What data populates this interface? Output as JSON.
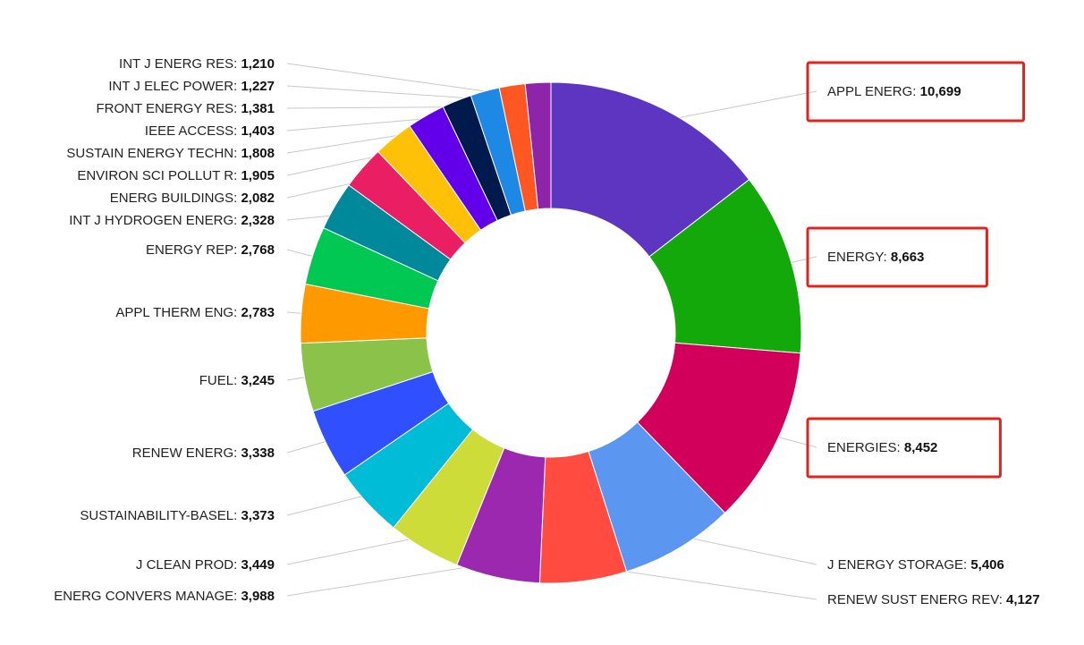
{
  "chart_data": {
    "type": "pie",
    "donut": true,
    "title": "",
    "slices": [
      {
        "label": "APPL ENERG",
        "value": 10699,
        "value_text": "10,699",
        "color": "#5e35c0",
        "highlighted": true
      },
      {
        "label": "ENERGY",
        "value": 8663,
        "value_text": "8,663",
        "color": "#13a90a",
        "highlighted": true
      },
      {
        "label": "ENERGIES",
        "value": 8452,
        "value_text": "8,452",
        "color": "#d2005a",
        "highlighted": true
      },
      {
        "label": "J ENERGY STORAGE",
        "value": 5406,
        "value_text": "5,406",
        "color": "#5b96f0",
        "highlighted": false
      },
      {
        "label": "RENEW SUST ENERG REV",
        "value": 4127,
        "value_text": "4,127",
        "color": "#ff4b40",
        "highlighted": false
      },
      {
        "label": "ENERG CONVERS MANAGE",
        "value": 3988,
        "value_text": "3,988",
        "color": "#9c28b0",
        "highlighted": false
      },
      {
        "label": "J CLEAN PROD",
        "value": 3449,
        "value_text": "3,449",
        "color": "#cddc39",
        "highlighted": false
      },
      {
        "label": "SUSTAINABILITY-BASEL",
        "value": 3373,
        "value_text": "3,373",
        "color": "#00bcd6",
        "highlighted": false
      },
      {
        "label": "RENEW ENERG",
        "value": 3338,
        "value_text": "3,338",
        "color": "#304ffe",
        "highlighted": false
      },
      {
        "label": "FUEL",
        "value": 3245,
        "value_text": "3,245",
        "color": "#8bc34a",
        "highlighted": false
      },
      {
        "label": "APPL THERM ENG",
        "value": 2783,
        "value_text": "2,783",
        "color": "#ff9900",
        "highlighted": false
      },
      {
        "label": "ENERGY REP",
        "value": 2768,
        "value_text": "2,768",
        "color": "#00c853",
        "highlighted": false
      },
      {
        "label": "INT J HYDROGEN ENERG",
        "value": 2328,
        "value_text": "2,328",
        "color": "#00899b",
        "highlighted": false
      },
      {
        "label": "ENERG BUILDINGS",
        "value": 2082,
        "value_text": "2,082",
        "color": "#e91e63",
        "highlighted": false
      },
      {
        "label": "ENVIRON SCI POLLUT R",
        "value": 1905,
        "value_text": "1,905",
        "color": "#ffc107",
        "highlighted": false
      },
      {
        "label": "SUSTAIN ENERGY TECHN",
        "value": 1808,
        "value_text": "1,808",
        "color": "#6200ea",
        "highlighted": false
      },
      {
        "label": "IEEE ACCESS",
        "value": 1403,
        "value_text": "1,403",
        "color": "#001a4d",
        "highlighted": false
      },
      {
        "label": "FRONT ENERGY RES",
        "value": 1381,
        "value_text": "1,381",
        "color": "#1e88e5",
        "highlighted": false
      },
      {
        "label": "INT J ELEC POWER",
        "value": 1227,
        "value_text": "1,227",
        "color": "#ff5722",
        "highlighted": false
      },
      {
        "label": "INT J ENERG RES",
        "value": 1210,
        "value_text": "1,210",
        "color": "#8e24aa",
        "highlighted": false
      }
    ],
    "highlight_color": "#e0241b",
    "legend": "none"
  }
}
